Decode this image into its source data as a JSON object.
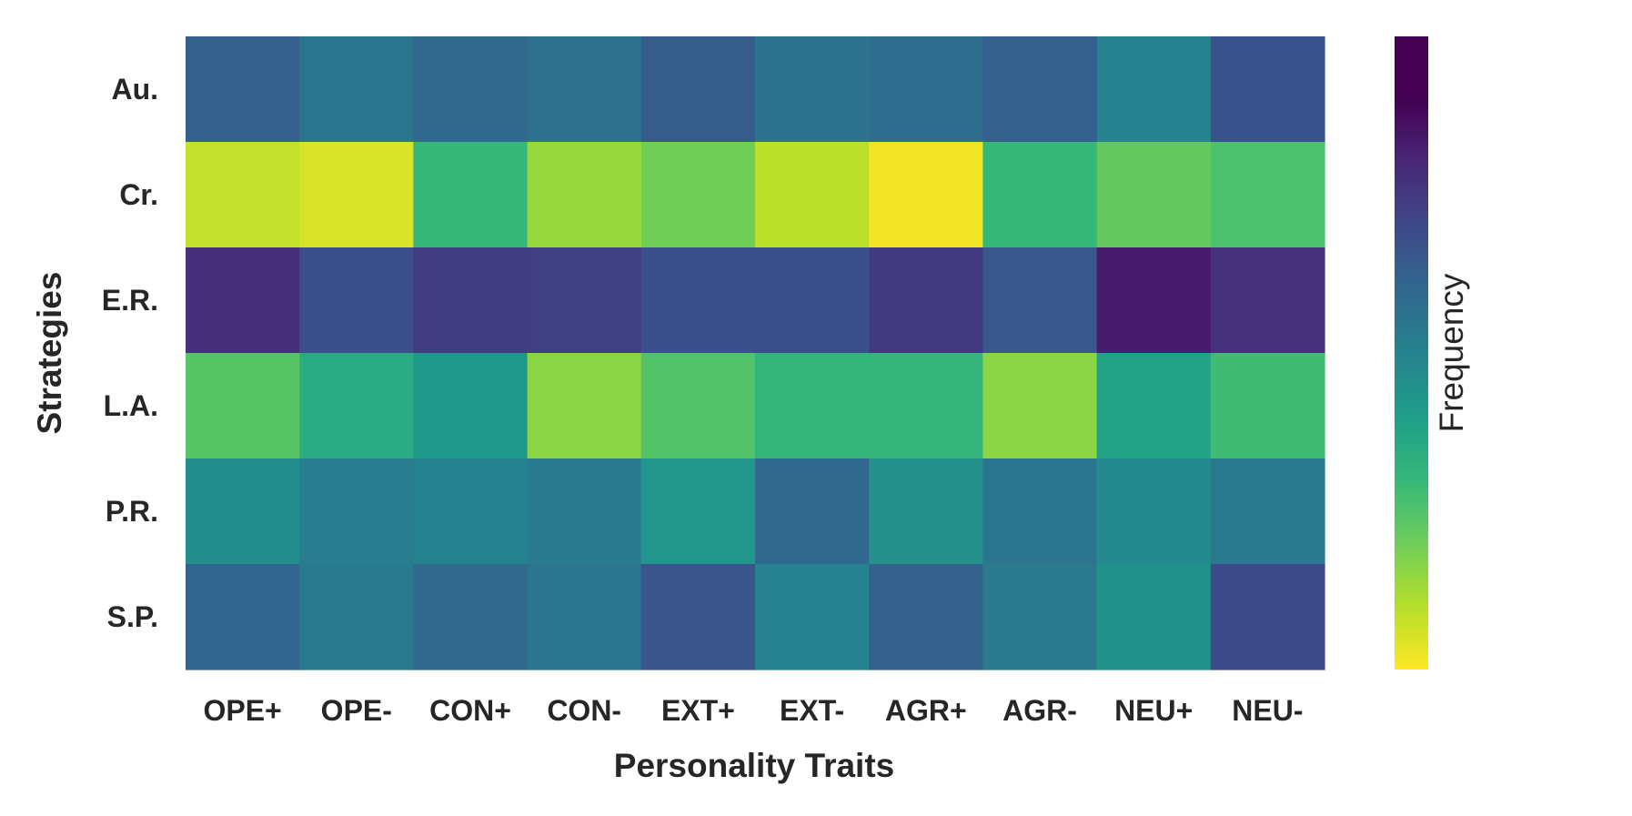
{
  "chart_data": {
    "type": "heatmap",
    "colormap": "viridis_r",
    "rows": [
      "Au.",
      "Cr.",
      "E.R.",
      "L.A.",
      "P.R.",
      "S.P."
    ],
    "columns": [
      "OPE+",
      "OPE-",
      "CON+",
      "CON-",
      "EXT+",
      "EXT-",
      "AGR+",
      "AGR-",
      "NEU+",
      "NEU-"
    ],
    "values": [
      [
        0.62,
        0.55,
        0.6,
        0.57,
        0.64,
        0.56,
        0.58,
        0.63,
        0.5,
        0.67
      ],
      [
        0.08,
        0.05,
        0.3,
        0.14,
        0.2,
        0.09,
        0.02,
        0.3,
        0.22,
        0.26
      ],
      [
        0.78,
        0.68,
        0.74,
        0.73,
        0.68,
        0.68,
        0.75,
        0.65,
        0.86,
        0.77
      ],
      [
        0.24,
        0.35,
        0.42,
        0.16,
        0.25,
        0.31,
        0.31,
        0.16,
        0.38,
        0.28
      ],
      [
        0.46,
        0.52,
        0.5,
        0.53,
        0.43,
        0.6,
        0.45,
        0.55,
        0.47,
        0.54
      ],
      [
        0.61,
        0.53,
        0.59,
        0.55,
        0.66,
        0.5,
        0.62,
        0.53,
        0.44,
        0.7
      ]
    ],
    "xlabel": "Personality Traits",
    "ylabel": "Strategies",
    "colorbar_label": "Frequency",
    "colorbar_ticks": false,
    "grid": false,
    "legend": "colorbar-right"
  }
}
